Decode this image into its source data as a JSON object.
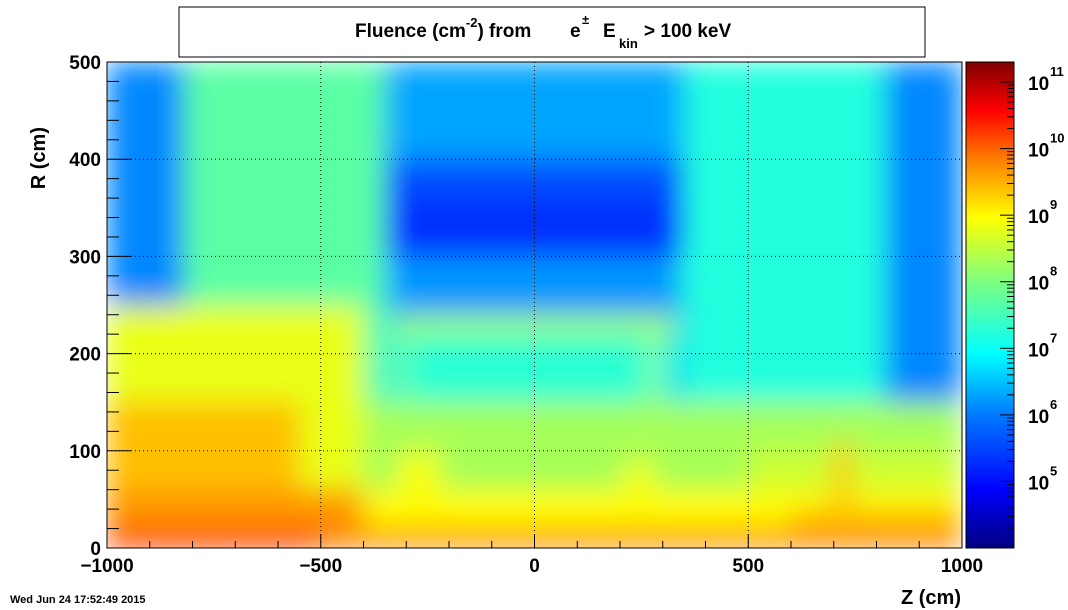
{
  "chart_data": {
    "type": "heatmap",
    "title_parts": {
      "pre": "Fluence (cm",
      "sup1": "-2",
      "mid": ") from",
      "e": "e",
      "sup2": "±",
      "E": "E",
      "sub": "kin",
      "post": "> 100 keV"
    },
    "xlabel": "Z (cm)",
    "ylabel": "R (cm)",
    "xlim": [
      -1000,
      1000
    ],
    "ylim": [
      0,
      500
    ],
    "x_ticks": [
      -1000,
      -500,
      0,
      500,
      1000
    ],
    "x_tick_labels": [
      "−1000",
      "−500",
      "0",
      "500",
      "1000"
    ],
    "y_ticks": [
      0,
      100,
      200,
      300,
      400,
      500
    ],
    "y_tick_labels": [
      "0",
      "100",
      "200",
      "300",
      "400",
      "500"
    ],
    "grid": true,
    "colorbar": {
      "scale": "log",
      "range": [
        10000,
        200000000000
      ],
      "tick_exponents": [
        5,
        6,
        7,
        8,
        9,
        10,
        11
      ],
      "tick_base": "10",
      "palette": [
        "#00007f",
        "#0000ff",
        "#007fff",
        "#00ffff",
        "#7fff7f",
        "#ffff00",
        "#ff7f00",
        "#ff0000",
        "#7f0000"
      ]
    },
    "regions_log10": [
      {
        "z": [
          -1000,
          1000
        ],
        "r": [
          0,
          500
        ],
        "value": 6.3
      },
      {
        "z": [
          -1000,
          -820
        ],
        "r": [
          0,
          500
        ],
        "value": 6.1
      },
      {
        "z": [
          820,
          1000
        ],
        "r": [
          0,
          500
        ],
        "value": 6.1
      },
      {
        "z": [
          -820,
          820
        ],
        "r": [
          0,
          500
        ],
        "value": 7.3
      },
      {
        "z": [
          -820,
          -350
        ],
        "r": [
          0,
          500
        ],
        "value": 7.7
      },
      {
        "z": [
          350,
          820
        ],
        "r": [
          0,
          500
        ],
        "value": 7.2
      },
      {
        "z": [
          -350,
          350
        ],
        "r": [
          400,
          500
        ],
        "value": 6.3
      },
      {
        "z": [
          -350,
          350
        ],
        "r": [
          300,
          400
        ],
        "value": 5.6
      },
      {
        "z": [
          -330,
          330
        ],
        "r": [
          300,
          360
        ],
        "value": 5.3
      },
      {
        "z": [
          -340,
          340
        ],
        "r": [
          240,
          300
        ],
        "value": 6.2
      },
      {
        "z": [
          -350,
          -340
        ],
        "r": [
          100,
          300
        ],
        "value": 6.6
      },
      {
        "z": [
          330,
          350
        ],
        "r": [
          100,
          260
        ],
        "value": 6.4
      },
      {
        "z": [
          -320,
          320
        ],
        "r": [
          100,
          230
        ],
        "value": 7.3
      },
      {
        "z": [
          -330,
          330
        ],
        "r": [
          220,
          240
        ],
        "value": 8.3
      },
      {
        "z": [
          -320,
          -300
        ],
        "r": [
          60,
          230
        ],
        "value": 8.1
      },
      {
        "z": [
          270,
          290
        ],
        "r": [
          70,
          230
        ],
        "value": 8.4
      },
      {
        "z": [
          -1000,
          1000
        ],
        "r": [
          0,
          150
        ],
        "value": 8.3
      },
      {
        "z": [
          -1000,
          -400
        ],
        "r": [
          0,
          250
        ],
        "value": 8.8
      },
      {
        "z": [
          -1000,
          -550
        ],
        "r": [
          0,
          150
        ],
        "value": 9.4
      },
      {
        "z": [
          500,
          1000
        ],
        "r": [
          0,
          100
        ],
        "value": 8.6
      },
      {
        "z": [
          -1000,
          1000
        ],
        "r": [
          0,
          60
        ],
        "value": 9.0
      },
      {
        "z": [
          -1000,
          -400
        ],
        "r": [
          0,
          60
        ],
        "value": 9.7
      },
      {
        "z": [
          600,
          1000
        ],
        "r": [
          0,
          40
        ],
        "value": 9.4
      },
      {
        "z": [
          -1000,
          1000
        ],
        "r": [
          0,
          20
        ],
        "value": 9.8
      },
      {
        "z": [
          -1000,
          -500
        ],
        "r": [
          0,
          20
        ],
        "value": 10.3
      },
      {
        "z": [
          700,
          740
        ],
        "r": [
          20,
          110
        ],
        "value": 9.4
      },
      {
        "z": [
          -320,
          -220
        ],
        "r": [
          60,
          100
        ],
        "value": 8.9
      },
      {
        "z": [
          210,
          280
        ],
        "r": [
          50,
          90
        ],
        "value": 8.9
      }
    ]
  },
  "footer": {
    "timestamp": "Wed Jun 24 17:52:49 2015"
  }
}
